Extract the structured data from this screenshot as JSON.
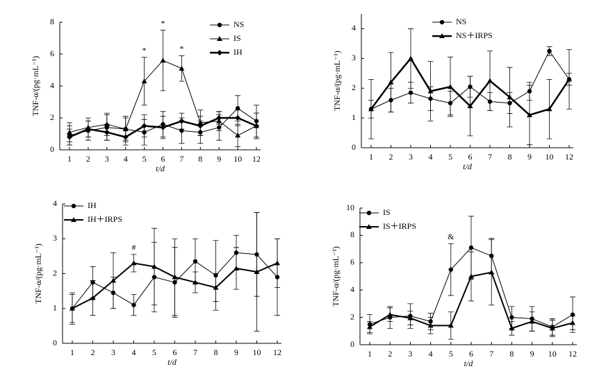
{
  "chart_data": [
    {
      "type": "line",
      "xlabel": "t/d",
      "ylabel": "TNF-α/(pg·mL⁻¹)",
      "categories": [
        "1",
        "2",
        "3",
        "4",
        "5",
        "6",
        "7",
        "8",
        "9",
        "10",
        "12"
      ],
      "ylim": [
        0,
        8
      ],
      "yticks": [
        0,
        2,
        4,
        6,
        8
      ],
      "series": [
        {
          "name": "NS",
          "color": "#000000",
          "marker": "circle",
          "line_width": 1,
          "values": [
            0.9,
            1.2,
            1.4,
            1.3,
            1.1,
            1.6,
            1.2,
            1.1,
            1.4,
            2.6,
            1.8
          ],
          "errors": [
            0.6,
            0.6,
            0.8,
            0.7,
            0.8,
            0.8,
            0.8,
            0.7,
            0.8,
            0.8,
            1.0
          ]
        },
        {
          "name": "IS",
          "color": "#000000",
          "marker": "triangle",
          "line_width": 1,
          "values": [
            1.1,
            1.4,
            1.6,
            1.3,
            4.3,
            5.6,
            5.1,
            1.7,
            1.8,
            0.9,
            1.5
          ],
          "errors": [
            0.6,
            0.6,
            0.7,
            0.8,
            1.5,
            1.9,
            0.8,
            0.8,
            0.6,
            0.7,
            0.8
          ]
        },
        {
          "name": "IH",
          "color": "#000000",
          "marker": "diamond",
          "line_width": 2.5,
          "values": [
            0.8,
            1.3,
            1.1,
            0.8,
            1.5,
            1.4,
            1.8,
            1.5,
            2.0,
            2.0,
            1.5
          ],
          "errors": [
            0.5,
            0.5,
            0.5,
            0.5,
            0.7,
            0.7,
            0.5,
            0.6,
            0.4,
            0.5,
            0.8
          ]
        }
      ],
      "annotations": [
        {
          "text": "*",
          "at": "5"
        },
        {
          "text": "*",
          "at": "6"
        },
        {
          "text": "*",
          "at": "7"
        }
      ]
    },
    {
      "type": "line",
      "xlabel": "t/d",
      "ylabel": "TNF-α/(pg·mL⁻¹)",
      "categories": [
        "1",
        "2",
        "3",
        "4",
        "5",
        "6",
        "7",
        "8",
        "9",
        "10",
        "12"
      ],
      "ylim": [
        0,
        4.5
      ],
      "yticks": [
        0,
        1,
        2,
        3,
        4
      ],
      "series": [
        {
          "name": "NS",
          "color": "#000000",
          "marker": "circle",
          "line_width": 1,
          "values": [
            1.3,
            1.6,
            1.85,
            1.65,
            1.5,
            2.05,
            1.55,
            1.5,
            1.9,
            3.25,
            2.3
          ],
          "errors": [
            0.3,
            0.4,
            0.35,
            0.4,
            0.4,
            0.35,
            0.3,
            0.35,
            0.3,
            0.15,
            0.2
          ]
        },
        {
          "name": "NS＋IRPS",
          "color": "#000000",
          "marker": "triangle",
          "line_width": 2.5,
          "values": [
            1.3,
            2.2,
            3.0,
            1.9,
            2.05,
            1.4,
            2.25,
            1.7,
            1.1,
            1.3,
            2.3
          ],
          "errors": [
            1.0,
            1.0,
            1.0,
            1.0,
            1.0,
            1.0,
            1.0,
            1.0,
            1.0,
            1.0,
            1.0
          ]
        }
      ]
    },
    {
      "type": "line",
      "xlabel": "t/d",
      "ylabel": "TNF-α/(pg·mL⁻¹)",
      "categories": [
        "1",
        "2",
        "3",
        "4",
        "5",
        "6",
        "7",
        "8",
        "9",
        "10",
        "12"
      ],
      "ylim": [
        0,
        4
      ],
      "yticks": [
        0,
        1,
        2,
        3,
        4
      ],
      "series": [
        {
          "name": "IH",
          "color": "#000000",
          "marker": "circle",
          "line_width": 1,
          "values": [
            1.0,
            1.75,
            1.45,
            1.1,
            1.9,
            1.75,
            2.35,
            1.95,
            2.6,
            2.55,
            1.9
          ],
          "errors": [
            0.45,
            0.45,
            0.45,
            0.3,
            1.0,
            1.0,
            0.65,
            1.0,
            0.5,
            1.2,
            1.1
          ]
        },
        {
          "name": "IH＋IRPS",
          "color": "#000000",
          "marker": "triangle",
          "line_width": 2,
          "values": [
            1.0,
            1.3,
            1.8,
            2.3,
            2.2,
            1.9,
            1.75,
            1.6,
            2.15,
            2.05,
            2.3
          ],
          "errors": [
            0.4,
            0.5,
            0.8,
            0.25,
            1.1,
            1.1,
            0.3,
            0.4,
            0.6,
            1.7,
            0.7
          ]
        }
      ],
      "annotations": [
        {
          "text": "#",
          "at": "4"
        }
      ]
    },
    {
      "type": "line",
      "xlabel": "t/d",
      "ylabel": "TNF-α/(pg·mL⁻¹)",
      "categories": [
        "1",
        "2",
        "3",
        "4",
        "5",
        "6",
        "7",
        "8",
        "9",
        "10",
        "12"
      ],
      "ylim": [
        0,
        10
      ],
      "yticks": [
        0,
        2,
        4,
        6,
        8,
        10
      ],
      "series": [
        {
          "name": "IS",
          "color": "#000000",
          "marker": "circle",
          "line_width": 1,
          "values": [
            1.5,
            2.0,
            2.1,
            1.7,
            5.5,
            7.1,
            6.5,
            2.0,
            1.9,
            1.3,
            2.2
          ],
          "errors": [
            0.7,
            0.8,
            0.9,
            0.6,
            1.9,
            2.3,
            1.3,
            0.8,
            0.9,
            0.6,
            1.3
          ]
        },
        {
          "name": "IS＋IRPS",
          "color": "#000000",
          "marker": "triangle",
          "line_width": 2,
          "values": [
            1.3,
            2.2,
            1.95,
            1.4,
            1.4,
            5.0,
            5.3,
            1.2,
            1.7,
            1.2,
            1.6
          ],
          "errors": [
            0.4,
            0.5,
            0.5,
            0.6,
            1.0,
            1.8,
            2.4,
            0.5,
            0.7,
            0.6,
            0.5
          ]
        }
      ],
      "annotations": [
        {
          "text": "&",
          "at": "5"
        }
      ]
    }
  ]
}
